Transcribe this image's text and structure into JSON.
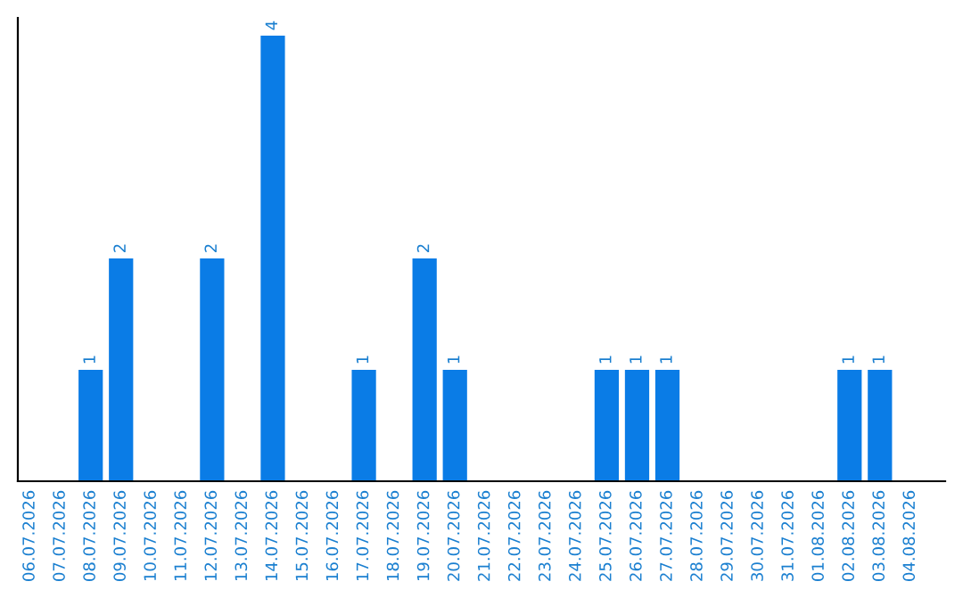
{
  "chart_data": {
    "type": "bar",
    "categories": [
      "06.07.2026",
      "07.07.2026",
      "08.07.2026",
      "09.07.2026",
      "10.07.2026",
      "11.07.2026",
      "12.07.2026",
      "13.07.2026",
      "14.07.2026",
      "15.07.2026",
      "16.07.2026",
      "17.07.2026",
      "18.07.2026",
      "19.07.2026",
      "20.07.2026",
      "21.07.2026",
      "22.07.2026",
      "23.07.2026",
      "24.07.2026",
      "25.07.2026",
      "26.07.2026",
      "27.07.2026",
      "28.07.2026",
      "29.07.2026",
      "30.07.2026",
      "31.07.2026",
      "01.08.2026",
      "02.08.2026",
      "03.08.2026",
      "04.08.2026"
    ],
    "values": [
      0,
      0,
      1,
      2,
      0,
      0,
      2,
      0,
      4,
      0,
      0,
      1,
      0,
      2,
      1,
      0,
      0,
      0,
      0,
      1,
      1,
      1,
      0,
      0,
      0,
      0,
      0,
      1,
      1,
      0
    ],
    "color": "#0a7ce6",
    "value_labels": [
      null,
      null,
      "1",
      "2",
      null,
      null,
      "2",
      null,
      "4",
      null,
      null,
      "1",
      null,
      "2",
      "1",
      null,
      null,
      null,
      null,
      "1",
      "1",
      "1",
      null,
      null,
      null,
      null,
      null,
      "1",
      "1",
      null
    ],
    "tick_labels": "x",
    "grid": false
  }
}
